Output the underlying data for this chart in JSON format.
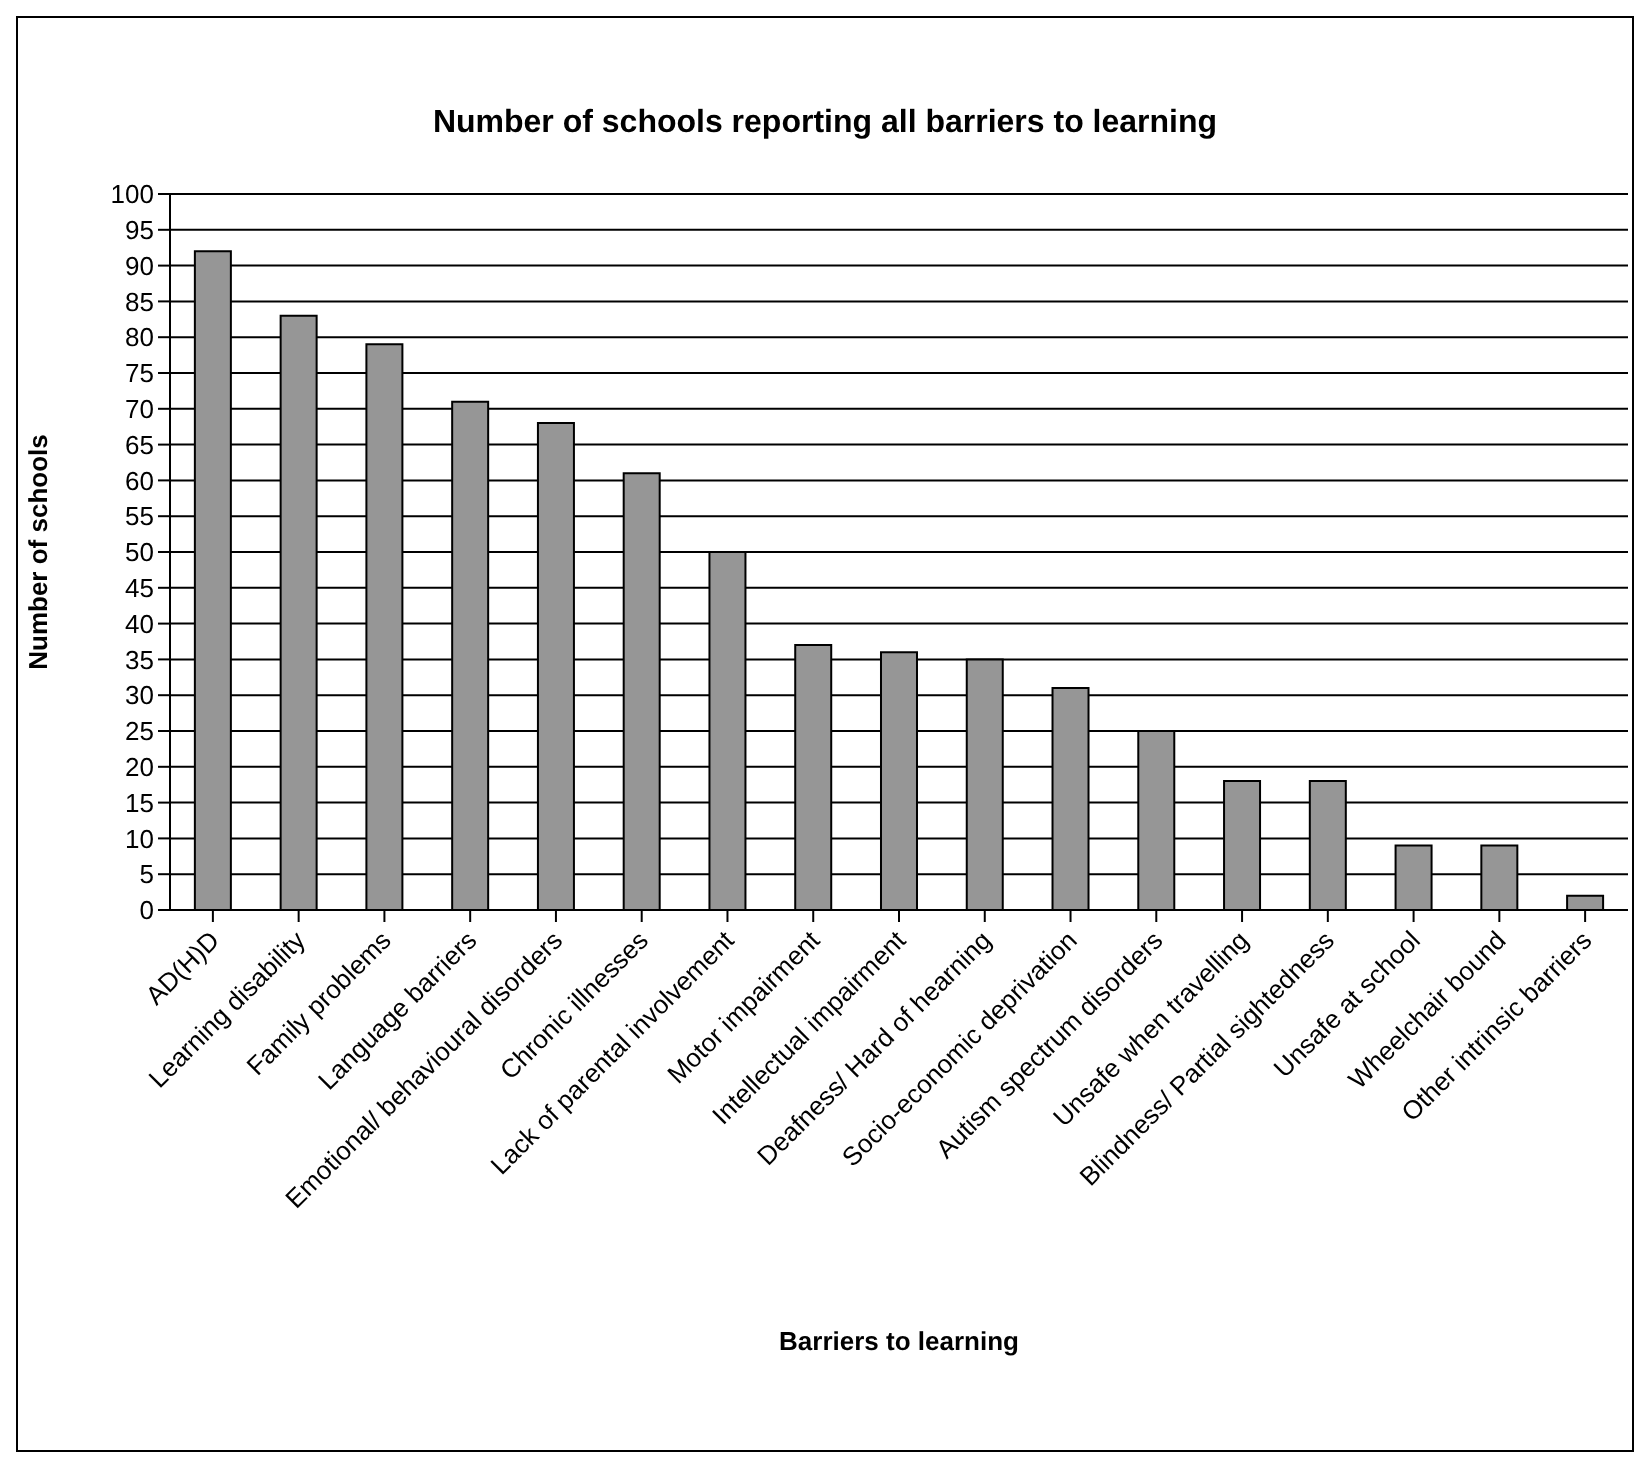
{
  "chart_data": {
    "type": "bar",
    "title": "Number of schools reporting all barriers to learning",
    "xlabel": "Barriers to learning",
    "ylabel": "Number of schools",
    "categories": [
      "AD(H)D",
      "Learning disability",
      "Family problems",
      "Language barriers",
      "Emotional/ behavioural disorders",
      "Chronic illnesses",
      "Lack of parental involvement",
      "Motor impairment",
      "Intellectual impairment",
      "Deafness/ Hard of hearning",
      "Socio-economic deprivation",
      "Autism spectrum disorders",
      "Unsafe when travelling",
      "Blindness/ Partial sightedness",
      "Unsafe at school",
      "Wheelchair bound",
      "Other intrinsic barriers"
    ],
    "values": [
      92,
      83,
      79,
      71,
      68,
      61,
      50,
      37,
      36,
      35,
      31,
      25,
      18,
      18,
      9,
      9,
      2
    ],
    "color": "#969696",
    "ylim": [
      0,
      100
    ],
    "yticks": [
      0,
      5,
      10,
      15,
      20,
      25,
      30,
      35,
      40,
      45,
      50,
      55,
      60,
      65,
      70,
      75,
      80,
      85,
      90,
      95,
      100
    ],
    "grid": "y",
    "legend": false
  }
}
